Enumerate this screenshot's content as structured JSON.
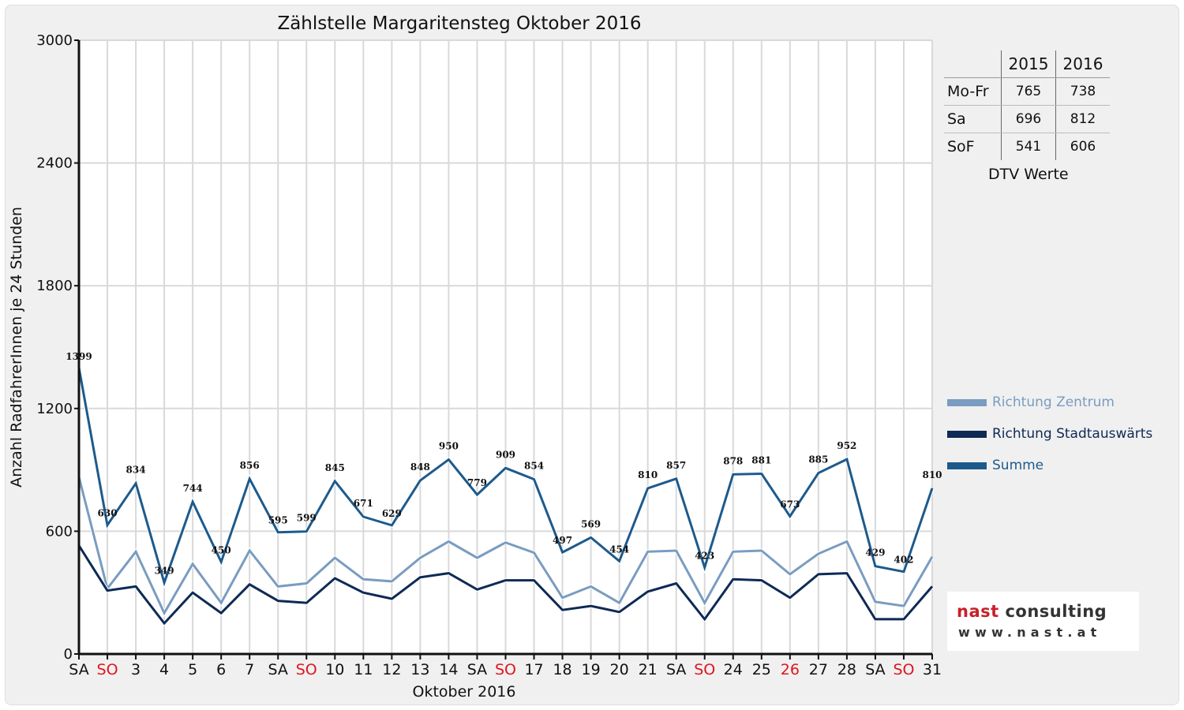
{
  "chart_data": {
    "type": "line",
    "title": "Zählstelle Margaritensteg Oktober 2016",
    "xlabel": "Oktober 2016",
    "ylabel": "Anzahl RadfahrerInnen je 24 Stunden",
    "ylim": [
      0,
      3000
    ],
    "yticks": [
      "0",
      "600",
      "1200",
      "1800",
      "2400",
      "3000"
    ],
    "categories": [
      "SA",
      "SO",
      "3",
      "4",
      "5",
      "6",
      "7",
      "SA",
      "SO",
      "10",
      "11",
      "12",
      "13",
      "14",
      "SA",
      "SO",
      "17",
      "18",
      "19",
      "20",
      "21",
      "SA",
      "SO",
      "24",
      "25",
      "26",
      "27",
      "28",
      "SA",
      "SO",
      "31"
    ],
    "red_categories": [
      1,
      8,
      15,
      22,
      25,
      29
    ],
    "grid": true,
    "legend_position": "right",
    "series": [
      {
        "name": "Richtung Zentrum",
        "color": "#7a9cc0",
        "values": [
          865,
          320,
          500,
          200,
          440,
          250,
          505,
          330,
          345,
          470,
          365,
          355,
          470,
          550,
          470,
          545,
          495,
          275,
          330,
          250,
          500,
          505,
          250,
          500,
          505,
          390,
          490,
          550,
          255,
          235,
          475
        ]
      },
      {
        "name": "Richtung Stadtauswärts",
        "color": "#0e2a55",
        "values": [
          530,
          310,
          330,
          150,
          300,
          200,
          340,
          260,
          250,
          370,
          300,
          270,
          375,
          395,
          315,
          360,
          360,
          215,
          235,
          205,
          305,
          345,
          170,
          365,
          360,
          275,
          390,
          395,
          170,
          170,
          330
        ]
      },
      {
        "name": "Summe",
        "color": "#1d5a8c",
        "values": [
          1399,
          630,
          834,
          349,
          744,
          450,
          856,
          595,
          599,
          845,
          671,
          629,
          848,
          950,
          779,
          909,
          854,
          497,
          569,
          454,
          810,
          857,
          423,
          878,
          881,
          673,
          885,
          952,
          429,
          402,
          810
        ]
      }
    ]
  },
  "dtv": {
    "header": [
      "",
      "2015",
      "2016"
    ],
    "rows": [
      {
        "label": "Mo-Fr",
        "v2015": "765",
        "v2016": "738"
      },
      {
        "label": "Sa",
        "v2015": "696",
        "v2016": "812"
      },
      {
        "label": "SoF",
        "v2015": "541",
        "v2016": "606"
      }
    ],
    "caption": "DTV Werte"
  },
  "logo": {
    "brand": "nast",
    "rest": " consulting",
    "url": "www.nast.at"
  },
  "colors": {
    "weekday_tick": "#111111",
    "holiday_tick": "#e0141e"
  }
}
